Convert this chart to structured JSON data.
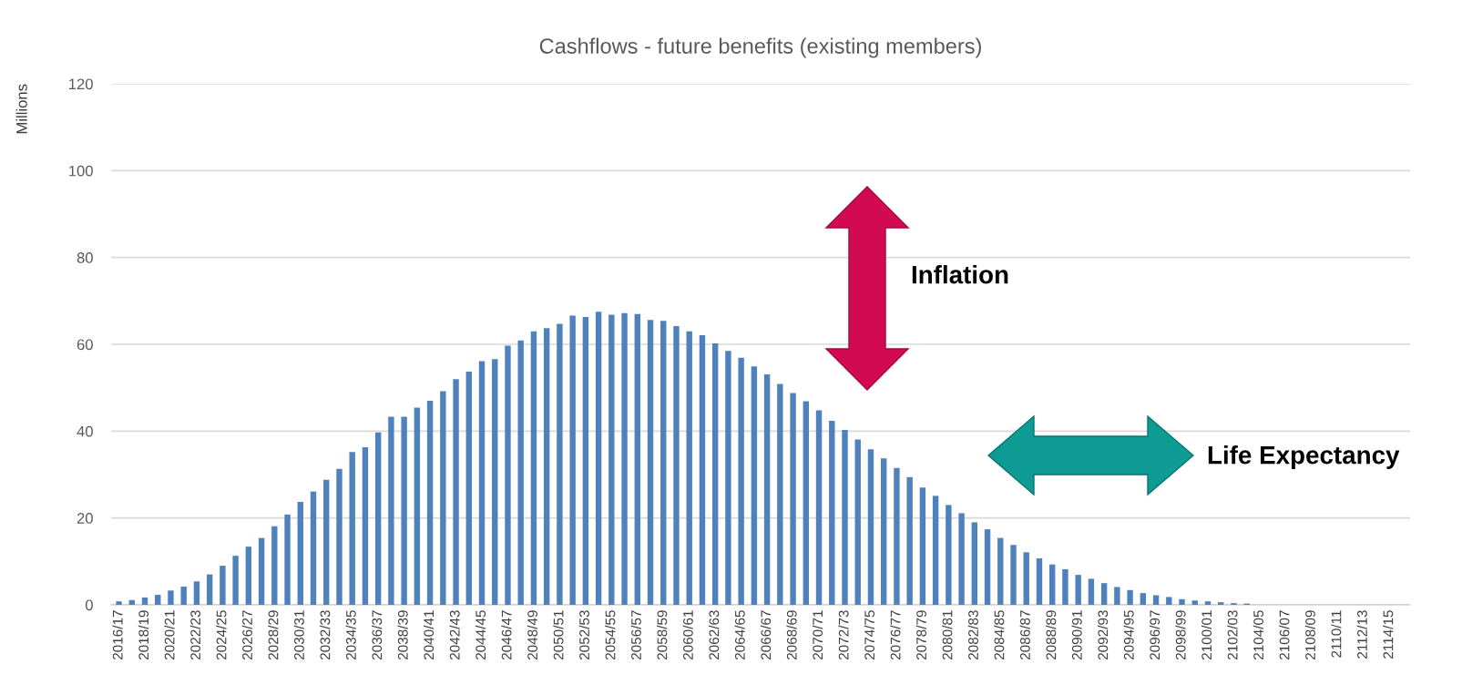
{
  "chart_data": {
    "type": "bar",
    "title": "Cashflows - future benefits (existing members)",
    "ylabel": "Millions",
    "categories": [
      "2016/17",
      null,
      "2018/19",
      null,
      "2020/21",
      null,
      "2022/23",
      null,
      "2024/25",
      null,
      "2026/27",
      null,
      "2028/29",
      null,
      "2030/31",
      null,
      "2032/33",
      null,
      "2034/35",
      null,
      "2036/37",
      null,
      "2038/39",
      null,
      "2040/41",
      null,
      "2042/43",
      null,
      "2044/45",
      null,
      "2046/47",
      null,
      "2048/49",
      null,
      "2050/51",
      null,
      "2052/53",
      null,
      "2054/55",
      null,
      "2056/57",
      null,
      "2058/59",
      null,
      "2060/61",
      null,
      "2062/63",
      null,
      "2064/65",
      null,
      "2066/67",
      null,
      "2068/69",
      null,
      "2070/71",
      null,
      "2072/73",
      null,
      "2074/75",
      null,
      "2076/77",
      null,
      "2078/79",
      null,
      "2080/81",
      null,
      "2082/83",
      null,
      "2084/85",
      null,
      "2086/87",
      null,
      "2088/89",
      null,
      "2090/91",
      null,
      "2092/93",
      null,
      "2094/95",
      null,
      "2096/97",
      null,
      "2098/99",
      null,
      "2100/01",
      null,
      "2102/03",
      null,
      "2104/05",
      null,
      "2106/07",
      null,
      "2108/09",
      null,
      "2110/11",
      null,
      "2112/13",
      null,
      "2114/15",
      null
    ],
    "values": [
      0.8,
      1.1,
      1.7,
      2.3,
      3.3,
      4.2,
      5.4,
      7.0,
      9.0,
      11.3,
      13.4,
      15.4,
      18.1,
      20.8,
      23.7,
      26.1,
      28.8,
      31.3,
      35.2,
      36.3,
      39.7,
      43.3,
      43.3,
      45.4,
      47.0,
      49.2,
      52.0,
      53.7,
      56.1,
      56.6,
      59.7,
      60.9,
      63.0,
      63.7,
      64.7,
      66.6,
      66.3,
      67.5,
      66.8,
      67.2,
      67.0,
      65.6,
      65.4,
      64.2,
      63.0,
      62.1,
      60.2,
      58.5,
      56.9,
      54.9,
      53.1,
      50.9,
      48.8,
      46.9,
      44.8,
      42.4,
      40.3,
      38.1,
      35.8,
      33.7,
      31.5,
      29.4,
      27.0,
      25.1,
      23.0,
      21.1,
      19.0,
      17.4,
      15.4,
      13.8,
      12.1,
      10.7,
      9.3,
      8.2,
      6.9,
      6.0,
      5.0,
      4.1,
      3.4,
      2.7,
      2.2,
      1.8,
      1.3,
      1.0,
      0.8,
      0.6,
      0.4,
      0.3,
      0,
      0,
      0,
      0,
      0,
      0,
      0,
      0,
      0,
      0,
      0,
      0
    ],
    "color": "#4f81bd",
    "ylim": [
      0,
      120
    ],
    "yticks": [
      0,
      20,
      40,
      60,
      80,
      100,
      120
    ],
    "grid": "y",
    "annotations": [
      "Inflation",
      "Life Expectancy"
    ]
  }
}
